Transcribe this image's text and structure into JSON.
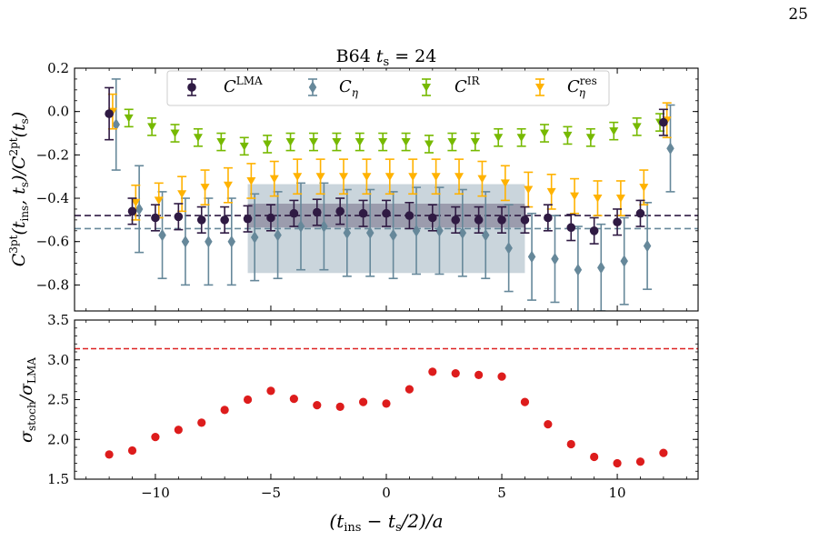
{
  "page_number": "25",
  "chart_data": [
    {
      "type": "scatter",
      "title": "B64 t_s = 24",
      "title_parts": {
        "prefix": "B64 ",
        "var": "t",
        "sub": "s",
        "suffix": " = 24"
      },
      "xlim": [
        -13.5,
        13.5
      ],
      "ylim": [
        -0.92,
        0.2
      ],
      "yticks": [
        -0.8,
        -0.6,
        -0.4,
        -0.2,
        0.0,
        0.2
      ],
      "ytick_labels": [
        "−0.8",
        "−0.6",
        "−0.4",
        "−0.2",
        "0.0",
        "0.2"
      ],
      "ylabel": "C^{3pt}(t_ins, t_s)/C^{2pt}(t_s)",
      "ylabel_parts": {
        "C": "C",
        "sup3pt": "3pt",
        "args1": "(t",
        "ins": "ins",
        "mid": ", t",
        "s1": "s",
        "slash": ")/C",
        "sup2pt": "2pt",
        "args2": "(t",
        "s2": "s",
        "close": ")"
      },
      "grid": false,
      "legend_position": "top-center",
      "series": [
        {
          "name": "C^LMA",
          "label_base": "C",
          "label_sup": "LMA",
          "label_sub": "",
          "marker": "circle",
          "color": "#2f1a43",
          "x": [
            -12,
            -11,
            -10,
            -9,
            -8,
            -7,
            -6,
            -5,
            -4,
            -3,
            -2,
            -1,
            0,
            1,
            2,
            3,
            4,
            5,
            6,
            7,
            8,
            9,
            10,
            11,
            12
          ],
          "y": [
            -0.01,
            -0.46,
            -0.49,
            -0.485,
            -0.5,
            -0.5,
            -0.495,
            -0.49,
            -0.47,
            -0.465,
            -0.46,
            -0.47,
            -0.47,
            -0.48,
            -0.49,
            -0.5,
            -0.5,
            -0.5,
            -0.5,
            -0.49,
            -0.535,
            -0.55,
            -0.51,
            -0.47,
            -0.05
          ],
          "err": [
            0.12,
            0.06,
            0.06,
            0.06,
            0.06,
            0.06,
            0.06,
            0.06,
            0.06,
            0.06,
            0.06,
            0.06,
            0.06,
            0.06,
            0.06,
            0.06,
            0.06,
            0.06,
            0.06,
            0.06,
            0.06,
            0.06,
            0.06,
            0.06,
            0.06
          ]
        },
        {
          "name": "C_eta",
          "label_base": "C",
          "label_sup": "",
          "label_sub": "η",
          "marker": "diamond",
          "color": "#66889a",
          "x": [
            -11.7,
            -10.7,
            -9.7,
            -8.7,
            -7.7,
            -6.7,
            -5.7,
            -4.7,
            -3.7,
            -2.7,
            -1.7,
            -0.7,
            0.3,
            1.3,
            2.3,
            3.3,
            4.3,
            5.3,
            6.3,
            7.3,
            8.3,
            9.3,
            10.3,
            11.3,
            12.3
          ],
          "y": [
            -0.06,
            -0.45,
            -0.57,
            -0.6,
            -0.6,
            -0.6,
            -0.58,
            -0.57,
            -0.53,
            -0.53,
            -0.56,
            -0.56,
            -0.57,
            -0.55,
            -0.55,
            -0.56,
            -0.57,
            -0.63,
            -0.67,
            -0.68,
            -0.73,
            -0.72,
            -0.69,
            -0.62,
            -0.17
          ],
          "err": [
            0.21,
            0.2,
            0.2,
            0.2,
            0.2,
            0.2,
            0.2,
            0.2,
            0.2,
            0.2,
            0.2,
            0.2,
            0.2,
            0.2,
            0.2,
            0.2,
            0.2,
            0.2,
            0.2,
            0.2,
            0.2,
            0.2,
            0.2,
            0.2,
            0.2
          ]
        },
        {
          "name": "C^IR",
          "label_base": "C",
          "label_sup": "IR",
          "label_sub": "",
          "marker": "triangle-down",
          "color": "#76b900",
          "x": [
            -11.15,
            -10.15,
            -9.15,
            -8.15,
            -7.15,
            -6.15,
            -5.15,
            -4.15,
            -3.15,
            -2.15,
            -1.15,
            -0.15,
            0.85,
            1.85,
            2.85,
            3.85,
            4.85,
            5.85,
            6.85,
            7.85,
            8.85,
            9.85,
            10.85,
            11.85
          ],
          "y": [
            -0.03,
            -0.07,
            -0.1,
            -0.12,
            -0.14,
            -0.16,
            -0.15,
            -0.14,
            -0.14,
            -0.14,
            -0.14,
            -0.14,
            -0.14,
            -0.15,
            -0.14,
            -0.14,
            -0.12,
            -0.12,
            -0.1,
            -0.11,
            -0.12,
            -0.09,
            -0.07,
            -0.05
          ],
          "err": [
            0.04,
            0.04,
            0.04,
            0.04,
            0.04,
            0.04,
            0.04,
            0.04,
            0.04,
            0.04,
            0.04,
            0.04,
            0.04,
            0.04,
            0.04,
            0.04,
            0.04,
            0.04,
            0.04,
            0.04,
            0.04,
            0.04,
            0.04,
            0.04
          ]
        },
        {
          "name": "C_eta^res",
          "label_base": "C",
          "label_sup": "res",
          "label_sub": "η",
          "marker": "triangle-down",
          "color": "#ffb200",
          "x": [
            -11.85,
            -10.85,
            -9.85,
            -8.85,
            -7.85,
            -6.85,
            -5.85,
            -4.85,
            -3.85,
            -2.85,
            -1.85,
            -0.85,
            0.15,
            1.15,
            2.15,
            3.15,
            4.15,
            5.15,
            6.15,
            7.15,
            8.15,
            9.15,
            10.15,
            11.15,
            12.15
          ],
          "y": [
            0.0,
            -0.42,
            -0.41,
            -0.38,
            -0.35,
            -0.34,
            -0.32,
            -0.31,
            -0.3,
            -0.3,
            -0.3,
            -0.3,
            -0.3,
            -0.3,
            -0.3,
            -0.3,
            -0.31,
            -0.33,
            -0.36,
            -0.37,
            -0.39,
            -0.4,
            -0.4,
            -0.35,
            -0.04
          ],
          "err": [
            0.08,
            0.08,
            0.08,
            0.08,
            0.08,
            0.08,
            0.08,
            0.08,
            0.08,
            0.08,
            0.08,
            0.08,
            0.08,
            0.08,
            0.08,
            0.08,
            0.08,
            0.08,
            0.08,
            0.08,
            0.08,
            0.08,
            0.08,
            0.08,
            0.08
          ]
        }
      ],
      "hlines": [
        {
          "y": -0.48,
          "color": "#2f1a43",
          "style": "dashed"
        },
        {
          "y": -0.54,
          "color": "#66889a",
          "style": "dashed"
        }
      ],
      "bands": [
        {
          "x0": -6,
          "x1": 6,
          "y0": -0.745,
          "y1": -0.335,
          "color": "#66889a",
          "opacity": 0.35
        },
        {
          "x0": -6,
          "x1": 6,
          "y0": -0.535,
          "y1": -0.425,
          "color": "#2f1a43",
          "opacity": 0.3
        }
      ]
    },
    {
      "type": "scatter",
      "xlim": [
        -13.5,
        13.5
      ],
      "ylim": [
        1.5,
        3.5
      ],
      "xticks": [
        -10,
        -5,
        0,
        5,
        10
      ],
      "xtick_labels": [
        "−10",
        "−5",
        "0",
        "5",
        "10"
      ],
      "yticks": [
        1.5,
        2.0,
        2.5,
        3.0,
        3.5
      ],
      "ytick_labels": [
        "1.5",
        "2.0",
        "2.5",
        "3.0",
        "3.5"
      ],
      "xlabel": "(t_ins − t_s/2)/a",
      "xlabel_parts": {
        "open": "(t",
        "ins": "ins",
        "mid": " − t",
        "s": "s",
        "close": "/2)/a"
      },
      "ylabel": "σ_stoch/σ_LMA",
      "ylabel_parts": {
        "sigma1": "σ",
        "sub1": "stoch",
        "slash": "/σ",
        "sub2": "LMA"
      },
      "grid": false,
      "series": [
        {
          "marker": "circle",
          "color": "#dd1c1c",
          "x": [
            -12,
            -11,
            -10,
            -9,
            -8,
            -7,
            -6,
            -5,
            -4,
            -3,
            -2,
            -1,
            0,
            1,
            2,
            3,
            4,
            5,
            6,
            7,
            8,
            9,
            10,
            11,
            12
          ],
          "y": [
            1.81,
            1.86,
            2.03,
            2.12,
            2.21,
            2.37,
            2.5,
            2.61,
            2.51,
            2.43,
            2.41,
            2.47,
            2.45,
            2.63,
            2.85,
            2.83,
            2.81,
            2.79,
            2.47,
            2.19,
            1.94,
            1.78,
            1.7,
            1.72,
            1.83
          ]
        }
      ],
      "hlines": [
        {
          "y": 3.14,
          "color": "#dd2222",
          "style": "dashed"
        }
      ]
    }
  ]
}
